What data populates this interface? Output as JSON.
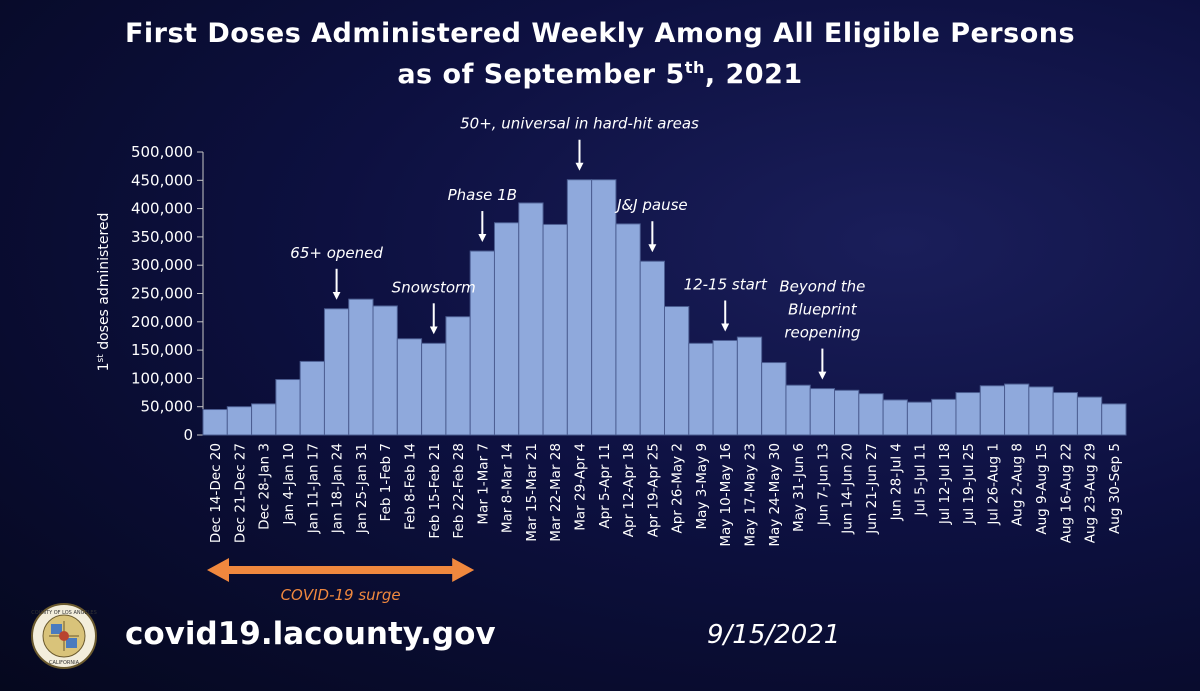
{
  "title": {
    "line1": "First Doses Administered Weekly Among All Eligible Persons",
    "line2_prefix": "as of September 5",
    "line2_sup": "th",
    "line2_suffix": ", 2021"
  },
  "chart_data": {
    "type": "bar",
    "title": "First Doses Administered Weekly Among All Eligible Persons as of September 5th, 2021",
    "xlabel": "",
    "ylabel_sup": "st",
    "ylabel_prefix": "1",
    "ylabel_rest": " doses administered",
    "ylim": [
      0,
      500000
    ],
    "yticks": [
      0,
      50000,
      100000,
      150000,
      200000,
      250000,
      300000,
      350000,
      400000,
      450000,
      500000
    ],
    "ytick_labels": [
      "0",
      "50,000",
      "100,000",
      "150,000",
      "200,000",
      "250,000",
      "300,000",
      "350,000",
      "400,000",
      "450,000",
      "500,000"
    ],
    "bar_color": "#8fa9dc",
    "categories": [
      "Dec 14-Dec 20",
      "Dec 21-Dec 27",
      "Dec 28-Jan 3",
      "Jan 4-Jan 10",
      "Jan 11-Jan 17",
      "Jan 18-Jan 24",
      "Jan 25-Jan 31",
      "Feb 1-Feb 7",
      "Feb 8-Feb 14",
      "Feb 15-Feb 21",
      "Feb 22-Feb 28",
      "Mar 1-Mar 7",
      "Mar 8-Mar 14",
      "Mar 15-Mar 21",
      "Mar 22-Mar 28",
      "Mar 29-Apr 4",
      "Apr 5-Apr 11",
      "Apr 12-Apr 18",
      "Apr 19-Apr 25",
      "Apr 26-May 2",
      "May 3-May 9",
      "May 10-May 16",
      "May 17-May 23",
      "May 24-May 30",
      "May 31-Jun 6",
      "Jun 7-Jun 13",
      "Jun 14-Jun 20",
      "Jun 21-Jun 27",
      "Jun 28-Jul 4",
      "Jul 5-Jul 11",
      "Jul 12-Jul 18",
      "Jul 19-Jul 25",
      "Jul 26-Aug 1",
      "Aug 2-Aug 8",
      "Aug 9-Aug 15",
      "Aug 16-Aug 22",
      "Aug 23-Aug 29",
      "Aug 30-Sep 5"
    ],
    "values": [
      45000,
      50000,
      55000,
      98000,
      130000,
      223000,
      240000,
      228000,
      170000,
      162000,
      209000,
      325000,
      375000,
      410000,
      372000,
      451000,
      451000,
      373000,
      307000,
      227000,
      162000,
      167000,
      173000,
      128000,
      88000,
      82000,
      79000,
      73000,
      62000,
      58000,
      63000,
      75000,
      87000,
      90000,
      85000,
      75000,
      67000,
      55000
    ],
    "annotations": [
      {
        "text": "65+ opened",
        "bar_index": 5,
        "color": "#ffffff",
        "arrow": true
      },
      {
        "text": "Snowstorm",
        "bar_index": 9,
        "color": "#ffffff",
        "arrow": true
      },
      {
        "text": "Phase 1B",
        "bar_index": 11,
        "color": "#ffffff",
        "arrow": true
      },
      {
        "text": "50+, universal in hard-hit areas",
        "bar_index": 15,
        "color": "#ffffff",
        "arrow": true
      },
      {
        "text": "J&J pause",
        "bar_index": 18,
        "color": "#ffffff",
        "arrow": true
      },
      {
        "text": "12-15 start",
        "bar_index": 21,
        "color": "#ffffff",
        "arrow": true
      },
      {
        "text": "Beyond the Blueprint reopening",
        "lines": [
          "Beyond the",
          "Blueprint",
          "reopening"
        ],
        "bar_index": 25,
        "color": "#ffffff",
        "arrow": true
      }
    ],
    "range_annotation": {
      "text": "COVID-19 surge",
      "from_bar": 0,
      "to_bar": 10,
      "color": "#f0883e"
    }
  },
  "footer": {
    "url": "covid19.lacounty.gov",
    "date": "9/15/2021"
  },
  "seal": {
    "text_top": "COUNTY OF LOS ANGELES",
    "text_bottom": "CALIFORNIA"
  }
}
